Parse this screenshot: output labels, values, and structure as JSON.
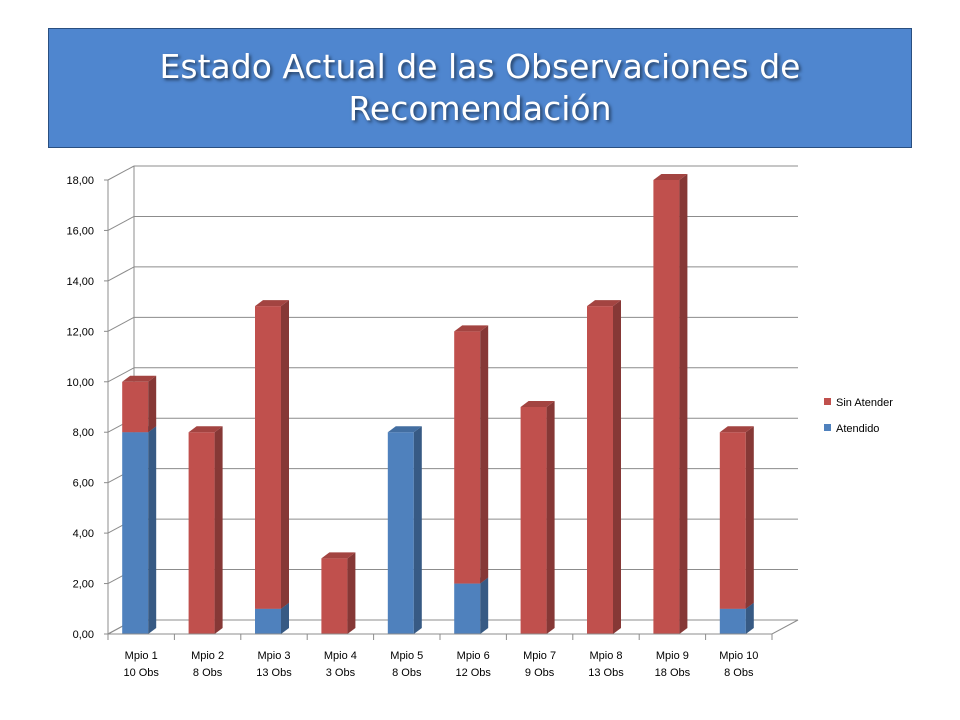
{
  "title": "Estado Actual de las Observaciones de Recomendación",
  "chart_data": {
    "type": "bar",
    "stacked": true,
    "three_d": true,
    "categories": [
      [
        "Mpio 1",
        "10 Obs"
      ],
      [
        "Mpio 2",
        "8 Obs"
      ],
      [
        "Mpio 3",
        "13 Obs"
      ],
      [
        "Mpio 4",
        "3 Obs"
      ],
      [
        "Mpio 5",
        "8 Obs"
      ],
      [
        "Mpio 6",
        "12 Obs"
      ],
      [
        "Mpio 7",
        "9 Obs"
      ],
      [
        "Mpio 8",
        "13 Obs"
      ],
      [
        "Mpio 9",
        "18 Obs"
      ],
      [
        "Mpio 10",
        "8 Obs"
      ]
    ],
    "series": [
      {
        "name": "Atendido",
        "color": "#4f81bd",
        "values": [
          8,
          0,
          1,
          0,
          8,
          2,
          0,
          0,
          0,
          1
        ]
      },
      {
        "name": "Sin Atender",
        "color": "#c0504d",
        "values": [
          2,
          8,
          12,
          3,
          0,
          10,
          9,
          13,
          18,
          7
        ]
      }
    ],
    "ylim": [
      0,
      18
    ],
    "yticks": [
      "0,00",
      "2,00",
      "4,00",
      "6,00",
      "8,00",
      "10,00",
      "12,00",
      "14,00",
      "16,00",
      "18,00"
    ],
    "grid": true,
    "legend_position": "right",
    "legend_order": [
      "Sin Atender",
      "Atendido"
    ]
  }
}
